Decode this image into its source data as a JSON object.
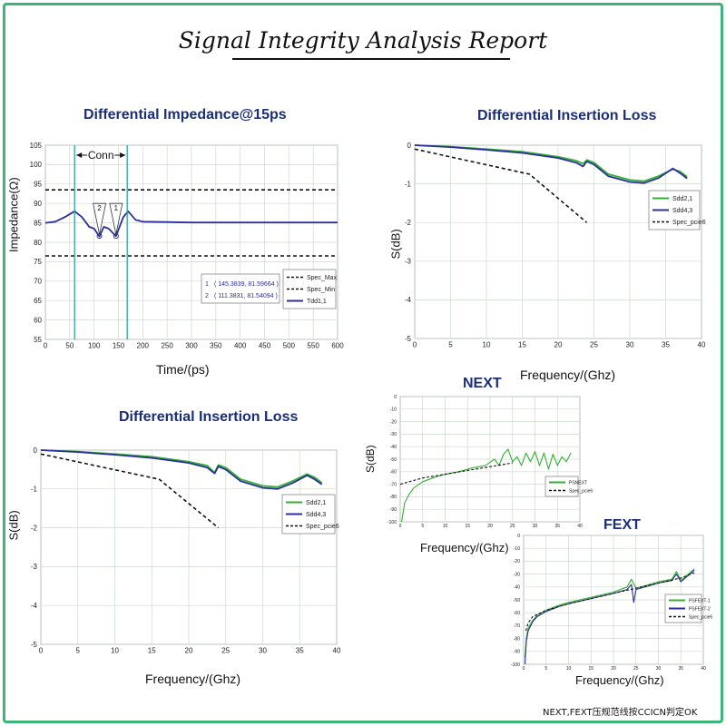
{
  "report_title": "Signal Integrity Analysis Report",
  "footnote": "NEXT,FEXT压规范线按CCICN判定OK",
  "colors": {
    "green": "#33b033",
    "blue": "#2b2f9e",
    "spec": "#111111",
    "title": "#1a2e7a",
    "frame": "#3bb57a",
    "cursor": "#25a7a7",
    "grid": "#cfd8cf"
  },
  "chart_data": [
    {
      "id": "impedance",
      "type": "line",
      "title": "Differential  Impedance@15ps",
      "xlabel": "Time/(ps)",
      "ylabel": "Impedance(Ω)",
      "xlim": [
        0,
        600
      ],
      "ylim": [
        55,
        105
      ],
      "xticks": [
        0,
        50,
        100,
        150,
        200,
        250,
        300,
        350,
        400,
        450,
        500,
        550,
        600
      ],
      "yticks": [
        55,
        60,
        65,
        70,
        75,
        80,
        85,
        90,
        95,
        100,
        105
      ],
      "grid": true,
      "annotations": {
        "conn_label": "Conn",
        "conn_range": [
          60,
          168
        ],
        "marker_1": "1",
        "marker_2": "2",
        "cursor_1": "( 145.3839, 81.59664 )",
        "cursor_2": "( 111.3831, 81.54094 )"
      },
      "legend": [
        "Spec_Max",
        "Spec_Min",
        "Tdd1,1"
      ],
      "series": [
        {
          "name": "Spec_Max",
          "style": "dash",
          "x": [
            0,
            600
          ],
          "values": [
            93.5,
            93.5
          ]
        },
        {
          "name": "Spec_Min",
          "style": "dash",
          "x": [
            0,
            600
          ],
          "values": [
            76.5,
            76.5
          ]
        },
        {
          "name": "Tdd1,1",
          "style": "solid",
          "x": [
            0,
            20,
            40,
            60,
            75,
            90,
            100,
            111,
            120,
            130,
            145,
            160,
            170,
            185,
            200,
            250,
            300,
            400,
            500,
            600
          ],
          "values": [
            85,
            85.3,
            86.5,
            88,
            86.5,
            84,
            83.5,
            81.5,
            84,
            83.5,
            81.6,
            86.5,
            88,
            85.8,
            85.3,
            85.2,
            85.1,
            85.1,
            85.1,
            85.1
          ]
        }
      ]
    },
    {
      "id": "il_top",
      "type": "line",
      "title": "Differential Insertion Loss",
      "xlabel": "Frequency/(Ghz)",
      "ylabel": "S(dB)",
      "xlim": [
        0,
        40
      ],
      "ylim": [
        -5,
        0
      ],
      "xticks": [
        0,
        5,
        10,
        15,
        20,
        25,
        30,
        35,
        40
      ],
      "yticks": [
        0,
        -1,
        -2,
        -3,
        -4,
        -5
      ],
      "grid": true,
      "legend": [
        "Sdd2,1",
        "Sdd4,3",
        "Spec_pcie6"
      ],
      "series": [
        {
          "name": "Sdd2,1",
          "style": "solid",
          "x": [
            0,
            5,
            10,
            15,
            20,
            22.5,
            23.5,
            24,
            25,
            27,
            30,
            32,
            34,
            36,
            37,
            38
          ],
          "values": [
            0,
            -0.04,
            -0.1,
            -0.17,
            -0.3,
            -0.4,
            -0.48,
            -0.38,
            -0.45,
            -0.75,
            -0.9,
            -0.93,
            -0.8,
            -0.62,
            -0.68,
            -0.82
          ]
        },
        {
          "name": "Sdd4,3",
          "style": "solid",
          "x": [
            0,
            5,
            10,
            15,
            20,
            22.5,
            23.5,
            24,
            25,
            27,
            30,
            32,
            34,
            36,
            37,
            38
          ],
          "values": [
            0,
            -0.05,
            -0.12,
            -0.2,
            -0.33,
            -0.45,
            -0.55,
            -0.42,
            -0.5,
            -0.8,
            -0.95,
            -0.98,
            -0.85,
            -0.6,
            -0.72,
            -0.86
          ]
        },
        {
          "name": "Spec_pcie6",
          "style": "dash",
          "x": [
            0,
            16,
            24
          ],
          "values": [
            -0.1,
            -0.75,
            -2.0
          ]
        }
      ]
    },
    {
      "id": "il_bottom",
      "type": "line",
      "title": "Differential Insertion Loss",
      "xlabel": "Frequency/(Ghz)",
      "ylabel": "S(dB)",
      "xlim": [
        0,
        40
      ],
      "ylim": [
        -5,
        0
      ],
      "xticks": [
        0,
        5,
        10,
        15,
        20,
        25,
        30,
        35,
        40
      ],
      "yticks": [
        0,
        -1,
        -2,
        -3,
        -4,
        -5
      ],
      "grid": true,
      "legend": [
        "Sdd2,1",
        "Sdd4,3",
        "Spec_pcie6"
      ],
      "series": [
        {
          "name": "Sdd2,1",
          "style": "solid",
          "x": [
            0,
            5,
            10,
            15,
            20,
            22.5,
            23.5,
            24,
            25,
            27,
            30,
            32,
            34,
            36,
            37,
            38
          ],
          "values": [
            0,
            -0.04,
            -0.1,
            -0.17,
            -0.3,
            -0.4,
            -0.58,
            -0.38,
            -0.45,
            -0.75,
            -0.92,
            -0.95,
            -0.8,
            -0.62,
            -0.7,
            -0.84
          ]
        },
        {
          "name": "Sdd4,3",
          "style": "solid",
          "x": [
            0,
            5,
            10,
            15,
            20,
            22.5,
            23.5,
            24,
            25,
            27,
            30,
            32,
            34,
            36,
            37,
            38
          ],
          "values": [
            0,
            -0.05,
            -0.12,
            -0.2,
            -0.33,
            -0.45,
            -0.6,
            -0.42,
            -0.5,
            -0.8,
            -0.97,
            -1.0,
            -0.85,
            -0.65,
            -0.75,
            -0.88
          ]
        },
        {
          "name": "Spec_pcie6",
          "style": "dash",
          "x": [
            0,
            16,
            24
          ],
          "values": [
            -0.1,
            -0.75,
            -2.0
          ]
        }
      ]
    },
    {
      "id": "next",
      "type": "line",
      "title": "NEXT",
      "xlabel": "Frequency/(Ghz)",
      "ylabel": "S(dB)",
      "xlim": [
        0,
        40
      ],
      "ylim": [
        -100,
        0
      ],
      "xticks": [
        0,
        5,
        10,
        15,
        20,
        25,
        30,
        35,
        40
      ],
      "yticks": [
        0,
        -10,
        -20,
        -30,
        -40,
        -50,
        -60,
        -70,
        -80,
        -90,
        -100
      ],
      "grid": true,
      "legend": [
        "PSNEXT",
        "Spec_pcie6"
      ],
      "series": [
        {
          "name": "PSNEXT",
          "style": "solid",
          "x": [
            0.3,
            1,
            2,
            3,
            5,
            8,
            10,
            13,
            16,
            19,
            21,
            22,
            23,
            24,
            25,
            26,
            27,
            28,
            29,
            30,
            31,
            32,
            33,
            34,
            35,
            36,
            37,
            38
          ],
          "values": [
            -100,
            -85,
            -78,
            -73,
            -68,
            -64,
            -62,
            -60,
            -57,
            -55,
            -50,
            -55,
            -46,
            -42,
            -52,
            -48,
            -55,
            -45,
            -52,
            -44,
            -55,
            -45,
            -58,
            -46,
            -55,
            -48,
            -52,
            -45
          ]
        },
        {
          "name": "Spec_pcie6",
          "style": "dash",
          "x": [
            0,
            5,
            10,
            15,
            20,
            25
          ],
          "values": [
            -70,
            -65,
            -62,
            -59,
            -56,
            -53
          ]
        }
      ]
    },
    {
      "id": "fext",
      "type": "line",
      "title": "FEXT",
      "xlabel": "Frequency/(Ghz)",
      "ylabel": "",
      "xlim": [
        0,
        40
      ],
      "ylim": [
        -100,
        0
      ],
      "xticks": [
        0,
        5,
        10,
        15,
        20,
        25,
        30,
        35,
        40
      ],
      "yticks": [
        0,
        -10,
        -20,
        -30,
        -40,
        -50,
        -60,
        -70,
        -80,
        -90,
        -100
      ],
      "grid": true,
      "legend": [
        "PSFEXT-1",
        "PSFEXT-2",
        "Spec_pcie6"
      ],
      "series": [
        {
          "name": "PSFEXT-1",
          "style": "solid",
          "x": [
            0.3,
            0.6,
            1,
            2,
            3,
            5,
            8,
            10,
            15,
            20,
            23,
            24,
            25,
            28,
            30,
            33,
            34,
            35,
            38
          ],
          "values": [
            -95,
            -80,
            -72,
            -66,
            -62,
            -58,
            -54,
            -52,
            -48,
            -44,
            -40,
            -34,
            -41,
            -38,
            -36,
            -34,
            -28,
            -35,
            -26
          ]
        },
        {
          "name": "PSFEXT-2",
          "style": "solid",
          "x": [
            0.3,
            0.6,
            1,
            2,
            3,
            5,
            8,
            10,
            15,
            20,
            23,
            24,
            24.5,
            25,
            28,
            30,
            33,
            34,
            35,
            38
          ],
          "values": [
            -100,
            -82,
            -74,
            -67,
            -63,
            -59,
            -55,
            -53,
            -49,
            -45,
            -42,
            -38,
            -52,
            -42,
            -39,
            -37,
            -35,
            -30,
            -36,
            -27
          ]
        },
        {
          "name": "Spec_pcie6",
          "style": "dash",
          "x": [
            0.5,
            1,
            2,
            5,
            10,
            15,
            20,
            25,
            30,
            35,
            38
          ],
          "values": [
            -74,
            -68,
            -63,
            -58,
            -53,
            -49,
            -45,
            -41,
            -37,
            -33,
            -29
          ]
        }
      ]
    }
  ]
}
